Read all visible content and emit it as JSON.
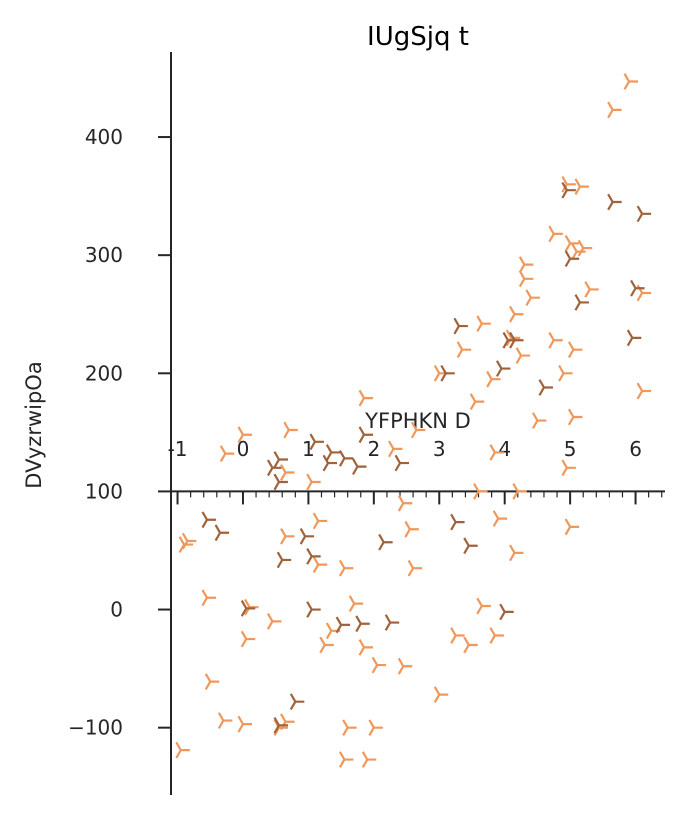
{
  "chart_data": {
    "type": "scatter",
    "title": "IUgSjq t",
    "xlabel": "YFPHKN D",
    "ylabel": "DVyzrwipOa",
    "xlim": [
      -1.1,
      6.45
    ],
    "ylim": [
      -157,
      472
    ],
    "x_axis_at_y": 100,
    "x_ticks": [
      -1,
      0,
      1,
      2,
      3,
      4,
      5,
      6
    ],
    "x_tick_labels": [
      "-1",
      "0",
      "1",
      "2",
      "3",
      "4",
      "5",
      "6"
    ],
    "y_ticks": [
      -100,
      0,
      100,
      200,
      300,
      400
    ],
    "y_tick_labels": [
      "−100",
      "0",
      "100",
      "200",
      "300",
      "400"
    ],
    "marker": "tri_right",
    "colors": {
      "light": "#f0975a",
      "dark": "#a0623a",
      "axis": "#262626"
    },
    "series": [
      {
        "name": "light",
        "color": "#f0975a",
        "points": [
          [
            -0.85,
            58
          ],
          [
            -0.9,
            55
          ],
          [
            -0.55,
            10
          ],
          [
            -0.5,
            -61
          ],
          [
            -0.95,
            -119
          ],
          [
            -0.3,
            -94
          ],
          [
            -0.27,
            132
          ],
          [
            0,
            148
          ],
          [
            0.05,
            -25
          ],
          [
            0,
            -97
          ],
          [
            0.45,
            -10
          ],
          [
            0.55,
            -100
          ],
          [
            0.65,
            -95
          ],
          [
            0.65,
            116
          ],
          [
            0.7,
            152
          ],
          [
            0.65,
            62
          ],
          [
            0.1,
            2
          ],
          [
            1.05,
            108
          ],
          [
            1.15,
            75
          ],
          [
            1.15,
            38
          ],
          [
            1.25,
            -30
          ],
          [
            1.35,
            -18
          ],
          [
            1.55,
            35
          ],
          [
            1.55,
            -127
          ],
          [
            1.6,
            -100
          ],
          [
            1.7,
            5
          ],
          [
            1.85,
            179
          ],
          [
            1.9,
            -127
          ],
          [
            2,
            -100
          ],
          [
            2.05,
            -47
          ],
          [
            1.85,
            -32
          ],
          [
            2.3,
            136
          ],
          [
            2.45,
            90
          ],
          [
            2.45,
            -48
          ],
          [
            2.55,
            68
          ],
          [
            2.6,
            35
          ],
          [
            2.65,
            152
          ],
          [
            3,
            -72
          ],
          [
            3,
            200
          ],
          [
            3.25,
            -22
          ],
          [
            3.35,
            220
          ],
          [
            3.45,
            -30
          ],
          [
            3.55,
            176
          ],
          [
            3.6,
            100
          ],
          [
            3.65,
            3
          ],
          [
            3.65,
            242
          ],
          [
            3.8,
            195
          ],
          [
            3.85,
            -22
          ],
          [
            3.85,
            133
          ],
          [
            3.9,
            77
          ],
          [
            4.1,
            230
          ],
          [
            4.15,
            48
          ],
          [
            4.15,
            250
          ],
          [
            4.2,
            100
          ],
          [
            4.25,
            215
          ],
          [
            4.3,
            292
          ],
          [
            4.3,
            280
          ],
          [
            4.4,
            264
          ],
          [
            4.5,
            160
          ],
          [
            4.75,
            318
          ],
          [
            4.75,
            228
          ],
          [
            4.9,
            200
          ],
          [
            4.95,
            120
          ],
          [
            4.95,
            360
          ],
          [
            5,
            70
          ],
          [
            5,
            310
          ],
          [
            5.05,
            163
          ],
          [
            5.05,
            220
          ],
          [
            5.1,
            303
          ],
          [
            5.15,
            358
          ],
          [
            5.2,
            306
          ],
          [
            5.3,
            271
          ],
          [
            5.65,
            423
          ],
          [
            5.9,
            447
          ],
          [
            6.1,
            185
          ],
          [
            6.1,
            268
          ]
        ]
      },
      {
        "name": "dark",
        "color": "#a0623a",
        "points": [
          [
            -0.55,
            76
          ],
          [
            -0.35,
            65
          ],
          [
            0.05,
            1
          ],
          [
            0.55,
            -98
          ],
          [
            0.8,
            -78
          ],
          [
            0.55,
            127
          ],
          [
            0.55,
            108
          ],
          [
            0.45,
            120
          ],
          [
            0.6,
            42
          ],
          [
            0.95,
            62
          ],
          [
            1.05,
            0
          ],
          [
            1.05,
            45
          ],
          [
            1.1,
            142
          ],
          [
            1.3,
            124
          ],
          [
            1.35,
            133
          ],
          [
            1.5,
            -13
          ],
          [
            1.55,
            128
          ],
          [
            1.75,
            121
          ],
          [
            1.8,
            -12
          ],
          [
            1.85,
            148
          ],
          [
            2.15,
            57
          ],
          [
            2.25,
            -11
          ],
          [
            2.4,
            124
          ],
          [
            3.1,
            200
          ],
          [
            3.25,
            74
          ],
          [
            3.3,
            240
          ],
          [
            3.45,
            54
          ],
          [
            4,
            -2
          ],
          [
            3.95,
            204
          ],
          [
            4.05,
            228
          ],
          [
            4.15,
            228
          ],
          [
            4.6,
            188
          ],
          [
            4.95,
            355
          ],
          [
            5,
            297
          ],
          [
            5.15,
            260
          ],
          [
            5.65,
            345
          ],
          [
            5.95,
            230
          ],
          [
            6,
            272
          ],
          [
            6.1,
            335
          ]
        ]
      }
    ]
  }
}
